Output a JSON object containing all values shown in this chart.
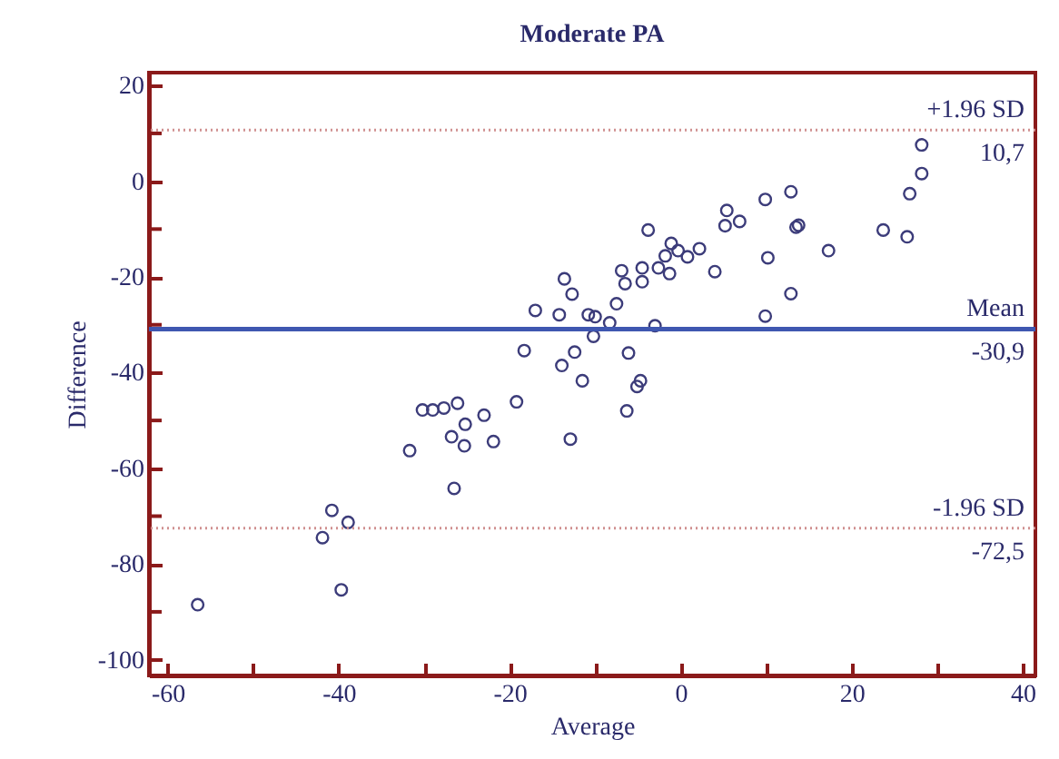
{
  "chart_data": {
    "type": "scatter",
    "title": "Moderate PA",
    "xlabel": "Average",
    "ylabel": "Difference",
    "x": [
      -56.5,
      -41.9,
      -40.8,
      -38.9,
      -39.7,
      -31.7,
      -30.2,
      -29.0,
      -27.7,
      -26.1,
      -26.8,
      -25.2,
      -25.3,
      -26.5,
      -23.0,
      -21.9,
      -19.2,
      -12.9,
      -11.5,
      -13.9,
      -13.6,
      -12.7,
      -17.0,
      -14.2,
      -10.8,
      -10.0,
      -10.2,
      -18.3,
      -12.4,
      28.2,
      28.2,
      26.8,
      26.5,
      23.7,
      17.3,
      12.9,
      9.9,
      13.5,
      13.8,
      10.2,
      12.9,
      9.9,
      5.4,
      5.2,
      6.9,
      4.0,
      -3.8,
      -1.1,
      2.2,
      0.8,
      -0.3,
      -1.8,
      -1.3,
      -2.6,
      -4.5,
      -4.5,
      -6.9,
      -6.5,
      -7.5,
      -8.3,
      -3.0,
      -6.1,
      -5.1,
      -4.7,
      -6.3
    ],
    "series": [
      {
        "color": "#3c3c7a",
        "values": [
          -88.5,
          -74.5,
          -68.8,
          -71.3,
          -85.4,
          -56.3,
          -47.8,
          -47.8,
          -47.4,
          -46.4,
          -53.4,
          -50.8,
          -55.3,
          -64.2,
          -48.9,
          -54.4,
          -46.1,
          -53.9,
          -41.7,
          -38.5,
          -20.4,
          -23.6,
          -27.0,
          -27.9,
          -27.9,
          -28.3,
          -32.4,
          -35.4,
          -35.7,
          7.6,
          1.6,
          -2.6,
          -11.6,
          -10.2,
          -14.5,
          -2.2,
          -3.8,
          -9.6,
          -9.2,
          -16.0,
          -23.5,
          -28.2,
          -6.1,
          -9.3,
          -8.4,
          -18.9,
          -10.2,
          -13.0,
          -14.1,
          -15.8,
          -14.5,
          -15.6,
          -19.3,
          -18.1,
          -18.1,
          -21.0,
          -18.7,
          -21.4,
          -25.6,
          -29.6,
          -30.2,
          -35.9,
          -42.9,
          -41.7,
          -48.0
        ]
      }
    ],
    "marker": "circle",
    "xlim": [
      -62.2,
      41.5
    ],
    "xticks": [
      -60,
      {
        "value": -50,
        "label": null
      },
      -40,
      {
        "value": -30,
        "label": null
      },
      -20,
      {
        "value": -10,
        "label": null
      },
      0,
      {
        "value": 10,
        "label": null
      },
      20,
      {
        "value": 30,
        "label": null
      },
      40
    ],
    "ylim": [
      -103.3,
      22.7
    ],
    "yticks": [
      20,
      {
        "value": 10,
        "label": null
      },
      0,
      {
        "value": -10,
        "label": null
      },
      -20,
      {
        "value": -30,
        "label": null
      },
      -40,
      {
        "value": -50,
        "label": null
      },
      -60,
      {
        "value": -70,
        "label": null
      },
      -80,
      {
        "value": -90,
        "label": null
      },
      -100
    ],
    "grid": false,
    "ref_lines": [
      {
        "axis": "y",
        "value": 10.7,
        "label": "+1.96 SD",
        "color": "#d09090",
        "line_style": "dotted"
      },
      {
        "axis": "y",
        "value": -30.9,
        "label": "Mean",
        "color": "#3f57b0",
        "line_style": "solid"
      },
      {
        "axis": "y",
        "value": -72.5,
        "label": "-1.96 SD",
        "color": "#d09090",
        "line_style": "dotted"
      }
    ],
    "annotations": [
      {
        "text": "10,7",
        "y": 10.7
      },
      {
        "text": "-30,9",
        "y": -30.9
      },
      {
        "text": "-72,5",
        "y": -72.5
      }
    ]
  }
}
